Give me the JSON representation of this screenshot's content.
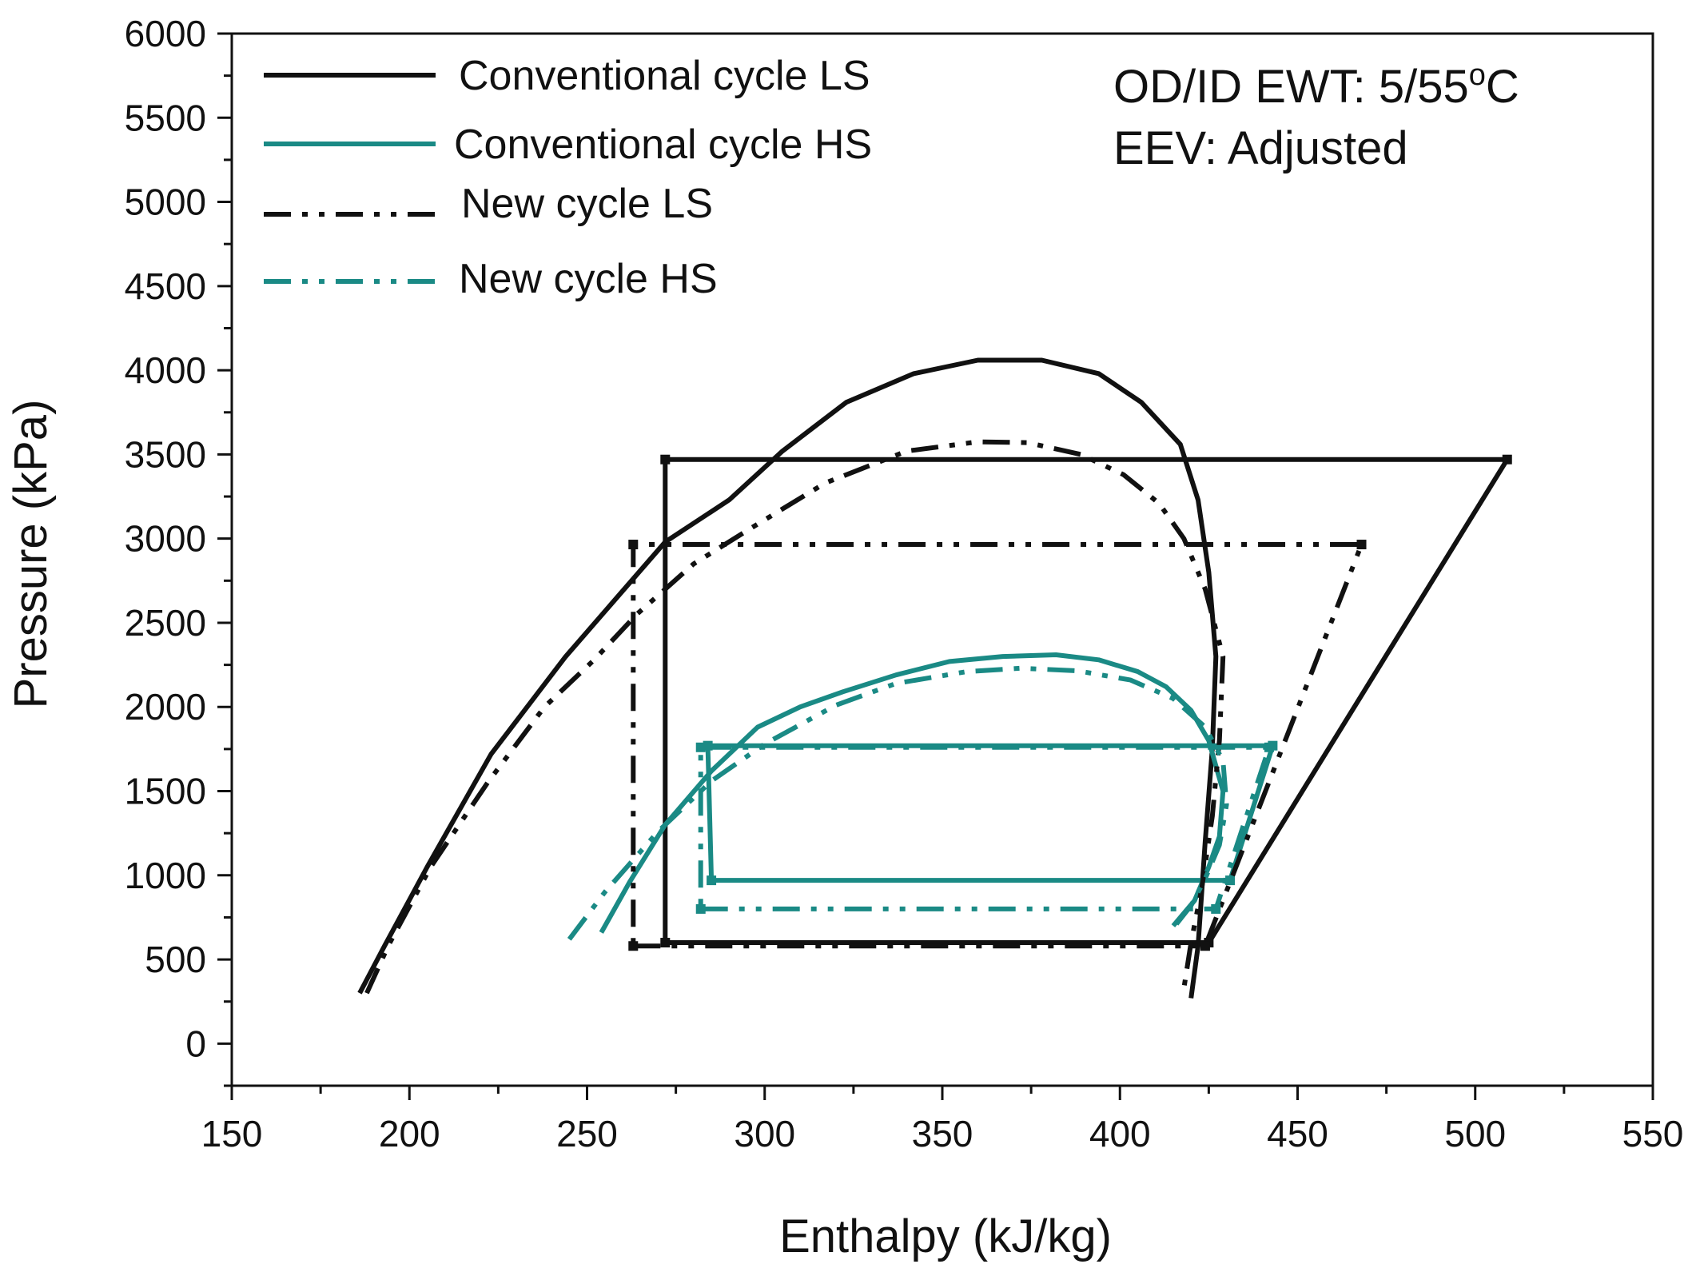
{
  "chart_data": {
    "type": "line",
    "title": "",
    "xlabel": "Enthalpy (kJ/kg)",
    "ylabel": "Pressure (kPa)",
    "xlim": [
      150,
      550
    ],
    "ylim": [
      -250,
      6000
    ],
    "xticks": [
      "150",
      "200",
      "250",
      "300",
      "350",
      "400",
      "450",
      "500",
      "550"
    ],
    "yticks": [
      "0",
      "500",
      "1000",
      "1500",
      "2000",
      "2500",
      "3000",
      "3500",
      "4000",
      "4500",
      "5000",
      "5500",
      "6000"
    ],
    "annotations": {
      "line1_prefix": "OD/ID EWT: 5/55",
      "line1_sup": "o",
      "line1_suffix": "C",
      "line2": "EEV: Adjusted"
    },
    "colors": {
      "black": "#111111",
      "teal": "#1a8a85"
    },
    "series": [
      {
        "name": "Conventional cycle LS",
        "color": "#111111",
        "style": "solid",
        "dome": [
          [
            186,
            300
          ],
          [
            193,
            580
          ],
          [
            205,
            1050
          ],
          [
            223,
            1720
          ],
          [
            244,
            2300
          ],
          [
            272,
            2980
          ],
          [
            290,
            3230
          ],
          [
            305,
            3520
          ],
          [
            323,
            3810
          ],
          [
            342,
            3980
          ],
          [
            360,
            4060
          ],
          [
            378,
            4060
          ],
          [
            394,
            3980
          ],
          [
            406,
            3810
          ],
          [
            417,
            3560
          ],
          [
            422,
            3230
          ],
          [
            425,
            2800
          ],
          [
            427,
            2300
          ],
          [
            426,
            1750
          ],
          [
            424,
            1200
          ],
          [
            422,
            580
          ],
          [
            420,
            270
          ]
        ],
        "cycle": [
          [
            272,
            600
          ],
          [
            425,
            600
          ],
          [
            509,
            3470
          ],
          [
            272,
            3470
          ],
          [
            272,
            600
          ]
        ]
      },
      {
        "name": "Conventional cycle HS",
        "color": "#1a8a85",
        "style": "solid",
        "dome": [
          [
            254,
            660
          ],
          [
            262,
            960
          ],
          [
            272,
            1300
          ],
          [
            285,
            1620
          ],
          [
            298,
            1880
          ],
          [
            310,
            2000
          ],
          [
            322,
            2090
          ],
          [
            337,
            2190
          ],
          [
            352,
            2270
          ],
          [
            367,
            2300
          ],
          [
            382,
            2310
          ],
          [
            394,
            2280
          ],
          [
            405,
            2210
          ],
          [
            413,
            2120
          ],
          [
            420,
            1980
          ],
          [
            425,
            1800
          ],
          [
            429,
            1500
          ],
          [
            428,
            1230
          ],
          [
            425,
            1050
          ],
          [
            421,
            850
          ],
          [
            415,
            700
          ]
        ],
        "cycle": [
          [
            285,
            970
          ],
          [
            431,
            970
          ],
          [
            443,
            1770
          ],
          [
            284,
            1770
          ],
          [
            285,
            970
          ]
        ]
      },
      {
        "name": "New cycle LS",
        "color": "#111111",
        "style": "dashdotdot",
        "dome": [
          [
            188,
            300
          ],
          [
            194,
            580
          ],
          [
            206,
            1050
          ],
          [
            222,
            1550
          ],
          [
            238,
            2000
          ],
          [
            252,
            2280
          ],
          [
            264,
            2550
          ],
          [
            280,
            2850
          ],
          [
            296,
            3060
          ],
          [
            317,
            3330
          ],
          [
            340,
            3520
          ],
          [
            360,
            3575
          ],
          [
            374,
            3570
          ],
          [
            389,
            3500
          ],
          [
            401,
            3380
          ],
          [
            411,
            3210
          ],
          [
            418,
            3000
          ],
          [
            424,
            2700
          ],
          [
            429,
            2300
          ],
          [
            428,
            1800
          ],
          [
            426,
            1350
          ],
          [
            423,
            920
          ],
          [
            420,
            600
          ],
          [
            418,
            330
          ]
        ],
        "cycle": [
          [
            263,
            580
          ],
          [
            424,
            580
          ],
          [
            468,
            2965
          ],
          [
            263,
            2965
          ],
          [
            263,
            580
          ]
        ]
      },
      {
        "name": "New cycle HS",
        "color": "#1a8a85",
        "style": "dashdotdot",
        "dome": [
          [
            245,
            620
          ],
          [
            255,
            900
          ],
          [
            270,
            1260
          ],
          [
            285,
            1560
          ],
          [
            300,
            1780
          ],
          [
            320,
            2010
          ],
          [
            337,
            2140
          ],
          [
            357,
            2210
          ],
          [
            372,
            2230
          ],
          [
            388,
            2215
          ],
          [
            403,
            2160
          ],
          [
            415,
            2050
          ],
          [
            424,
            1880
          ],
          [
            429,
            1680
          ],
          [
            430,
            1420
          ],
          [
            428,
            1180
          ],
          [
            424,
            980
          ],
          [
            420,
            820
          ],
          [
            414,
            660
          ]
        ],
        "cycle": [
          [
            282,
            800
          ],
          [
            427,
            800
          ],
          [
            442,
            1760
          ],
          [
            282,
            1760
          ],
          [
            282,
            800
          ]
        ]
      }
    ],
    "legend": [
      {
        "label": "Conventional cycle LS"
      },
      {
        "label": "Conventional cycle HS"
      },
      {
        "label": "New cycle LS"
      },
      {
        "label": "New cycle HS"
      }
    ]
  }
}
